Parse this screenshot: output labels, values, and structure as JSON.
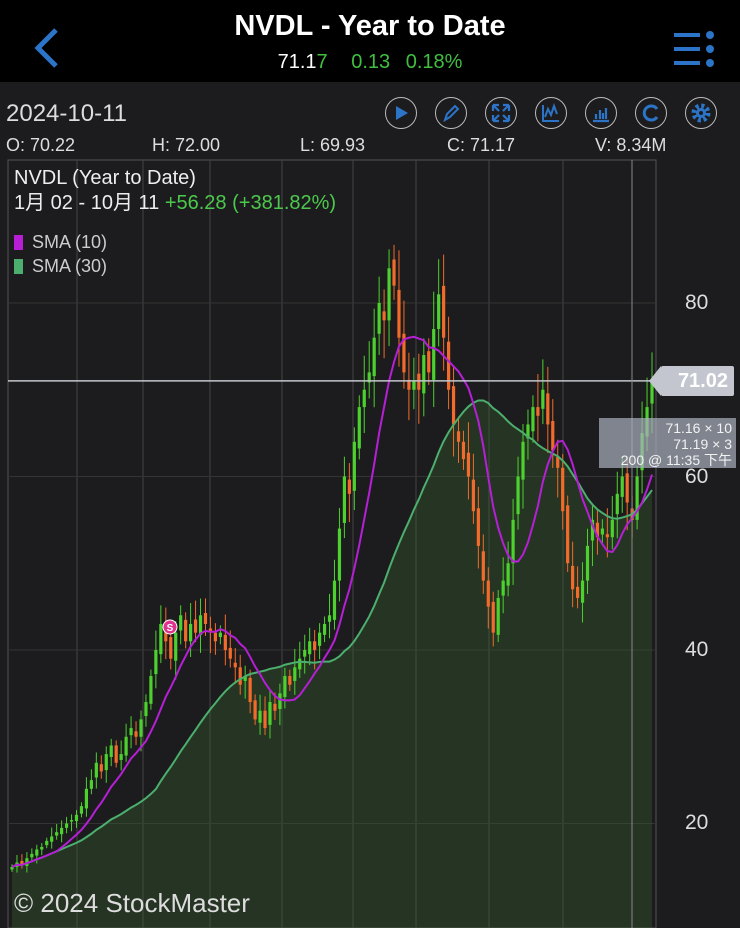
{
  "header": {
    "title": "NVDL - Year to Date",
    "price_main": "71.1",
    "price_last_digit": "7",
    "change": "0.13",
    "change_pct": "0.18%"
  },
  "toolbar": {
    "date": "2024-10-11",
    "icons": [
      "play-icon",
      "draw-icon",
      "fullscreen-icon",
      "indicator-icon",
      "volume-chart-icon",
      "refresh-icon",
      "settings-icon"
    ]
  },
  "ohlc": {
    "open": "O: 70.22",
    "high": "H: 72.00",
    "low": "L:  69.93",
    "close": "C: 71.17",
    "volume": "V: 8.34M"
  },
  "chart_info": {
    "title": "NVDL (Year to Date)",
    "range": "1月 02 - 10月 11",
    "change": "+56.28 (+381.82%)"
  },
  "legend": [
    {
      "label": "SMA (10)",
      "color": "#b61fd6"
    },
    {
      "label": "SMA (30)",
      "color": "#4caf6e"
    }
  ],
  "price_tag": "71.02",
  "tooltip": {
    "line1": "71.16 × 10",
    "line2": "71.19 × 3",
    "line3": "200 @ 11:35 下午"
  },
  "signal_marker": "S",
  "copyright": "© 2024 StockMaster",
  "colors": {
    "up": "#4cd12e",
    "down": "#f26b2a",
    "accent": "#2b74c8"
  },
  "chart_data": {
    "type": "candlestick",
    "yticks": [
      20,
      40,
      60,
      80
    ],
    "ylim": [
      12,
      98
    ],
    "last_price_line": 71.02,
    "closes": [
      15,
      15.5,
      15.2,
      16,
      16.5,
      17,
      17.3,
      18,
      18.5,
      19,
      19.5,
      20,
      20.4,
      21,
      22,
      24,
      25,
      27,
      26,
      28,
      29,
      27,
      28,
      30,
      31,
      30,
      32,
      34,
      37,
      40,
      43,
      41,
      39,
      42,
      44,
      41,
      43,
      42,
      44,
      43,
      42,
      41,
      42,
      40,
      39,
      38,
      36,
      37,
      34,
      32,
      33,
      31,
      34,
      33,
      35,
      37,
      36,
      38,
      39,
      40,
      41,
      40,
      42,
      43,
      44,
      48,
      54,
      60,
      58,
      64,
      68,
      70,
      72,
      76,
      80,
      78,
      84,
      82,
      76,
      72,
      70,
      71,
      70,
      74,
      72,
      77,
      81,
      76,
      70,
      66,
      64,
      62,
      60,
      56,
      52,
      48,
      45,
      42,
      46,
      48,
      50,
      55,
      60,
      64,
      66,
      68,
      67,
      70,
      66,
      63,
      61,
      56,
      50,
      47,
      46,
      48,
      52,
      55,
      53,
      54,
      53,
      55,
      58,
      60,
      57,
      55,
      60,
      65,
      68,
      71.17
    ],
    "sma_periods": [
      10,
      30
    ]
  }
}
